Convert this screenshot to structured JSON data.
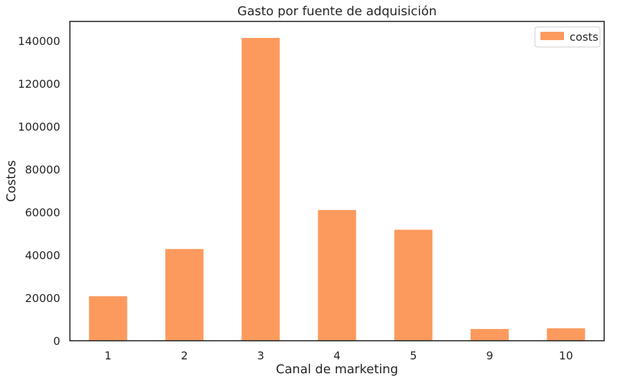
{
  "chart_data": {
    "type": "bar",
    "title": "Gasto por fuente de adquisición",
    "xlabel": "Canal de marketing",
    "ylabel": "Costos",
    "categories": [
      "1",
      "2",
      "3",
      "4",
      "5",
      "9",
      "10"
    ],
    "series": [
      {
        "name": "costs",
        "color": "#FC9A5E",
        "values": [
          20800,
          42800,
          141300,
          61000,
          51800,
          5500,
          5800
        ]
      }
    ],
    "ylim": [
      0,
      149000
    ],
    "yticks": [
      0,
      20000,
      40000,
      60000,
      80000,
      100000,
      120000,
      140000
    ],
    "grid": false,
    "legend_position": "top-right"
  }
}
